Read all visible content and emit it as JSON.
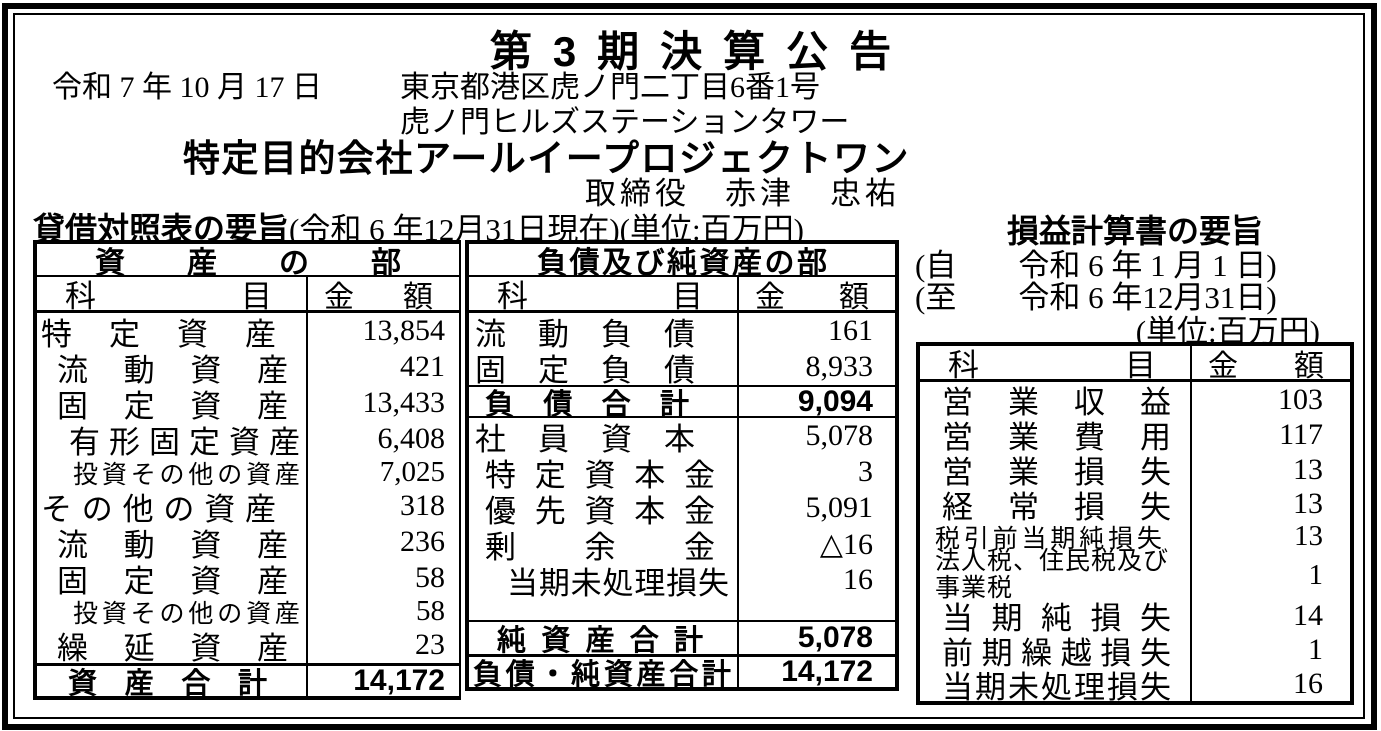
{
  "page": {
    "title": "第3期決算公告",
    "date": "令和 7 年 10 月 17 日",
    "address_line1": "東京都港区虎ノ門二丁目6番1号",
    "address_line2": "虎ノ門ヒルズステーションタワー",
    "company": "特定目的会社アールイープロジェクトワン",
    "officer": "取締役　赤津　忠祐"
  },
  "balance_sheet": {
    "title": "貸借対照表の要旨",
    "note": "(令和 6 年12月31日現在)(単位:百万円)",
    "assets": {
      "header": "資産の部",
      "col_item": "科目",
      "col_amount": "金額",
      "rows": [
        {
          "label": "特定資産",
          "value": "13,854"
        },
        {
          "label": "流動資産",
          "value": "421"
        },
        {
          "label": "固定資産",
          "value": "13,433"
        },
        {
          "label": "有形固定資産",
          "value": "6,408"
        },
        {
          "label": "投資その他の資産",
          "value": "7,025"
        },
        {
          "label": "その他の資産",
          "value": "318"
        },
        {
          "label": "流動資産",
          "value": "236"
        },
        {
          "label": "固定資産",
          "value": "58"
        },
        {
          "label": "投資その他の資産",
          "value": "58"
        },
        {
          "label": "繰延資産",
          "value": "23"
        }
      ],
      "total": {
        "label": "資産合計",
        "value": "14,172"
      }
    },
    "liabilities": {
      "header": "負債及び純資産の部",
      "col_item": "科目",
      "col_amount": "金額",
      "debt_rows": [
        {
          "label": "流動負債",
          "value": "161"
        },
        {
          "label": "固定負債",
          "value": "8,933"
        }
      ],
      "debt_total": {
        "label": "負債合計",
        "value": "9,094"
      },
      "equity_rows": [
        {
          "label": "社員資本",
          "value": "5,078"
        },
        {
          "label": "特定資本金",
          "value": "3"
        },
        {
          "label": "優先資本金",
          "value": "5,091"
        },
        {
          "label": "剰余金",
          "value": "△16"
        },
        {
          "label": "当期未処理損失",
          "value": "16"
        }
      ],
      "net_total": {
        "label": "純資産合計",
        "value": "5,078"
      },
      "grand_total": {
        "label": "負債・純資産合計",
        "value": "14,172"
      }
    }
  },
  "income_statement": {
    "title": "損益計算書の要旨",
    "period_from": "(自　　令和 6 年 1 月 1 日)",
    "period_to": "(至　　令和 6 年12月31日)",
    "unit": "(単位:百万円)",
    "col_item": "科目",
    "col_amount": "金額",
    "rows": [
      {
        "label": "営業収益",
        "value": "103"
      },
      {
        "label": "営業費用",
        "value": "117"
      },
      {
        "label": "営業損失",
        "value": "13"
      },
      {
        "label": "経常損失",
        "value": "13"
      },
      {
        "label": "税引前当期純損失",
        "value": "13"
      },
      {
        "label": "法人税、住民税及び事業税",
        "value": "1"
      },
      {
        "label": "当期純損失",
        "value": "14"
      },
      {
        "label": "前期繰越損失",
        "value": "1"
      },
      {
        "label": "当期未処理損失",
        "value": "16"
      }
    ]
  }
}
